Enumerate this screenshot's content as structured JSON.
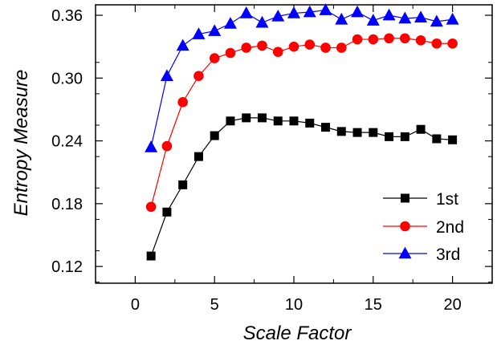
{
  "chart_data": {
    "type": "line",
    "title": "",
    "xlabel": "Scale Factor",
    "ylabel": "Entropy Measure",
    "xlim": [
      -2.5,
      22.5
    ],
    "ylim": [
      0.104,
      0.37
    ],
    "xticks": [
      0,
      5,
      10,
      15,
      20
    ],
    "xtick_labels": [
      "0",
      "5",
      "10",
      "15",
      "20"
    ],
    "yticks": [
      0.12,
      0.18,
      0.24,
      0.3,
      0.36
    ],
    "ytick_labels": [
      "0.12",
      "0.18",
      "0.24",
      "0.30",
      "0.36"
    ],
    "grid": false,
    "legend_position": "lower-right",
    "x": [
      1,
      2,
      3,
      4,
      5,
      6,
      7,
      8,
      9,
      10,
      11,
      12,
      13,
      14,
      15,
      16,
      17,
      18,
      19,
      20
    ],
    "series": [
      {
        "name": "1st",
        "color": "#000000",
        "marker": "square",
        "values": [
          0.13,
          0.172,
          0.198,
          0.225,
          0.245,
          0.259,
          0.262,
          0.262,
          0.259,
          0.259,
          0.257,
          0.253,
          0.249,
          0.248,
          0.248,
          0.244,
          0.244,
          0.251,
          0.242,
          0.241
        ]
      },
      {
        "name": "2nd",
        "color": "#ff0000",
        "marker": "circle",
        "values": [
          0.177,
          0.235,
          0.277,
          0.302,
          0.319,
          0.324,
          0.329,
          0.331,
          0.325,
          0.33,
          0.332,
          0.329,
          0.329,
          0.337,
          0.337,
          0.338,
          0.338,
          0.336,
          0.333,
          0.333
        ]
      },
      {
        "name": "3rd",
        "color": "#0000ff",
        "marker": "triangle",
        "values": [
          0.234,
          0.302,
          0.331,
          0.342,
          0.345,
          0.352,
          0.362,
          0.353,
          0.359,
          0.362,
          0.363,
          0.365,
          0.356,
          0.363,
          0.355,
          0.36,
          0.357,
          0.358,
          0.354,
          0.356
        ]
      }
    ]
  }
}
